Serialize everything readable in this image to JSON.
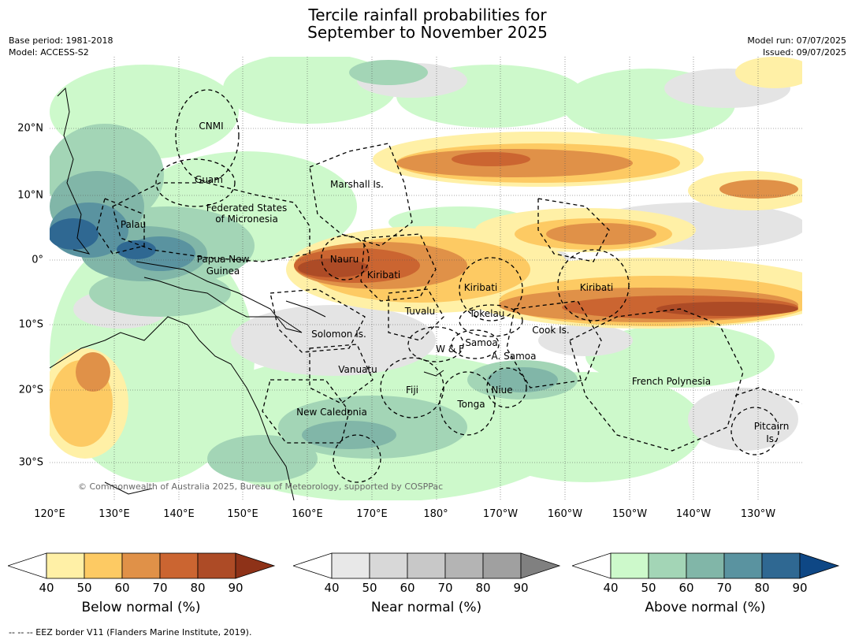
{
  "title_line1": "Tercile rainfall probabilities for",
  "title_line2": "September to November 2025",
  "meta": {
    "base_period": "Base period: 1981-2018",
    "model": "Model: ACCESS-S2",
    "model_run": "Model run: 07/07/2025",
    "issued": "Issued: 09/07/2025"
  },
  "axes": {
    "lat_labels": [
      "20°N",
      "10°N",
      "0°",
      "10°S",
      "20°S",
      "30°S"
    ],
    "lon_labels": [
      "120°E",
      "130°E",
      "140°E",
      "150°E",
      "160°E",
      "170°E",
      "180°",
      "170°W",
      "160°W",
      "150°W",
      "140°W",
      "130°W"
    ]
  },
  "regions": {
    "cnmi": "CNMI",
    "guam": "Guam",
    "marshall": "Marshall Is.",
    "fsm_1": "Federated States",
    "fsm_2": "of Micronesia",
    "palau": "Palau",
    "png_1": "Papua New",
    "png_2": "Guinea",
    "nauru": "Nauru",
    "kiribati_w": "Kiribati",
    "kiribati_c": "Kiribati",
    "kiribati_e": "Kiribati",
    "tuvalu": "Tuvalu",
    "tokelau": "Tokelau",
    "cook": "Cook Is.",
    "solomon": "Solomon Is.",
    "samoa": "Samoa",
    "wf": "W & F",
    "asamoa": "A. Samoa",
    "vanuatu": "Vanuatu",
    "fiji": "Fiji",
    "niue": "Niue",
    "tonga": "Tonga",
    "french_polynesia": "French Polynesia",
    "new_caledonia": "New Caledonia",
    "pitcairn_1": "Pitcairn",
    "pitcairn_2": "Is."
  },
  "credit": "© Commonwealth of Australia 2025, Bureau of Meteorology, supported by COSPPac",
  "colorbars": {
    "below": {
      "label": "Below normal (%)",
      "colors": [
        "#fff0a6",
        "#fdca63",
        "#e09148",
        "#cb6531",
        "#ad4b26",
        "#8e3218"
      ]
    },
    "near": {
      "label": "Near normal (%)",
      "colors": [
        "#e8e8e8",
        "#d8d8d8",
        "#c8c8c8",
        "#b4b4b4",
        "#a0a0a0",
        "#808080"
      ]
    },
    "above": {
      "label": "Above normal (%)",
      "colors": [
        "#cdf9cb",
        "#a3d5b6",
        "#81b6a8",
        "#5a93a0",
        "#2f6892",
        "#0e4785"
      ]
    },
    "ticks": [
      "40",
      "50",
      "60",
      "70",
      "80",
      "90"
    ]
  },
  "footer": "--  --  -- EEZ border V11 (Flanders Marine Institute, 2019)."
}
